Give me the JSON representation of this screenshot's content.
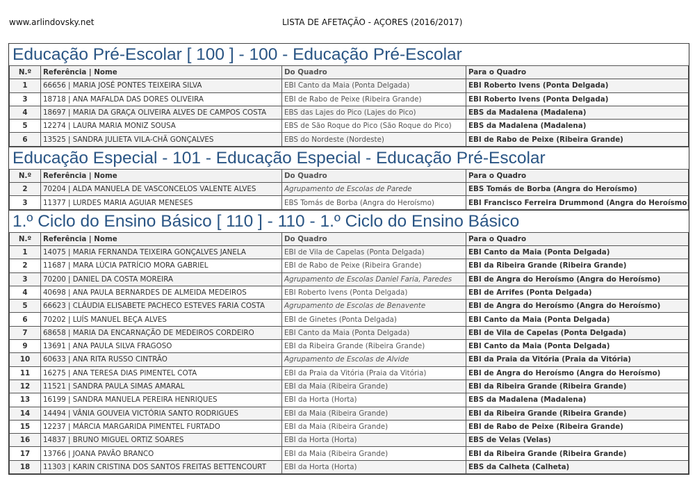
{
  "header": {
    "site": "www.arlindovsky.net",
    "title": "LISTA DE AFETAÇÃO - AÇORES (2016/2017)"
  },
  "columns": [
    "N.º",
    "Referência | Nome",
    "Do Quadro",
    "Para o Quadro"
  ],
  "sections": [
    {
      "title": "Educação Pré-Escolar [ 100 ] - 100 - Educação Pré-Escolar",
      "rows": [
        [
          "1",
          "66656 | MARIA JOSÉ PONTES TEIXEIRA SILVA",
          "EBI Canto da Maia (Ponta Delgada)",
          "EBI Roberto Ivens (Ponta Delgada)"
        ],
        [
          "3",
          "18718 | ANA MAFALDA DAS DORES OLIVEIRA",
          "EBI de Rabo de Peixe (Ribeira Grande)",
          "EBI Roberto Ivens (Ponta Delgada)"
        ],
        [
          "4",
          "18697 | MARIA DA GRAÇA OLIVEIRA ALVES DE CAMPOS COSTA",
          "EBS das Lajes do Pico (Lajes do Pico)",
          "EBS da Madalena (Madalena)"
        ],
        [
          "5",
          "12274 | LAURA MARIA MONIZ SOUSA",
          "EBS de São Roque do Pico (São Roque do Pico)",
          "EBS da Madalena (Madalena)"
        ],
        [
          "6",
          "13525 | SANDRA JULIETA VILA-CHÃ GONÇALVES",
          "EBS do Nordeste (Nordeste)",
          "EBI de Rabo de Peixe (Ribeira Grande)"
        ]
      ]
    },
    {
      "title": "Educação Especial - 101 - Educação Especial - Educação Pré-Escolar",
      "rows": [
        [
          "2",
          "70204 | ALDA MANUELA DE VASCONCELOS VALENTE ALVES",
          "Agrupamento de Escolas de Parede",
          "EBS Tomás de Borba (Angra do Heroísmo)"
        ],
        [
          "3",
          "11377 | LURDES MARIA AGUIAR MENESES",
          "EBS Tomás de Borba (Angra do Heroísmo)",
          "EBI Francisco Ferreira Drummond (Angra do Heroísmo)"
        ]
      ]
    },
    {
      "title": "1.º Ciclo do Ensino Básico [ 110 ] - 110 - 1.º Ciclo do Ensino Básico",
      "rows": [
        [
          "1",
          "14075 | MARIA FERNANDA TEIXEIRA GONÇALVES JANELA",
          "EBI de Vila de Capelas (Ponta Delgada)",
          "EBI Canto da Maia (Ponta Delgada)"
        ],
        [
          "2",
          "11687 | MARA LÚCIA PATRÍCIO MORA GABRIEL",
          "EBI de Rabo de Peixe (Ribeira Grande)",
          "EBI da Ribeira Grande (Ribeira Grande)"
        ],
        [
          "3",
          "70200 | DANIEL DA COSTA MOREIRA",
          "Agrupamento de Escolas Daniel Faria, Paredes",
          "EBI de Angra do Heroísmo (Angra do Heroísmo)"
        ],
        [
          "4",
          "40698 | ANA PAULA BERNARDES DE ALMEIDA MEDEIROS",
          "EBI Roberto Ivens (Ponta Delgada)",
          "EBI de Arrifes (Ponta Delgada)"
        ],
        [
          "5",
          "66623 | CLÁUDIA ELISABETE PACHECO ESTEVES FARIA COSTA",
          "Agrupamento de Escolas de Benavente",
          "EBI de Angra do Heroísmo (Angra do Heroísmo)"
        ],
        [
          "6",
          "70202 | LUÍS MANUEL BEÇA ALVES",
          "EBI de Ginetes (Ponta Delgada)",
          "EBI Canto da Maia (Ponta Delgada)"
        ],
        [
          "7",
          "68658 | MARIA DA ENCARNAÇÃO DE MEDEIROS CORDEIRO",
          "EBI Canto da Maia (Ponta Delgada)",
          "EBI de Vila de Capelas (Ponta Delgada)"
        ],
        [
          "9",
          "13691 | ANA PAULA SILVA FRAGOSO",
          "EBI da Ribeira Grande (Ribeira Grande)",
          "EBI Canto da Maia (Ponta Delgada)"
        ],
        [
          "10",
          "60633 | ANA RITA RUSSO CINTRÃO",
          "Agrupamento de Escolas de Alvide",
          "EBI da Praia da Vitória (Praia da Vitória)"
        ],
        [
          "11",
          "16275 | ANA TERESA DIAS PIMENTEL COTA",
          "EBI da Praia da Vitória (Praia da Vitória)",
          "EBI de Angra do Heroísmo (Angra do Heroísmo)"
        ],
        [
          "12",
          "11521 | SANDRA PAULA SIMAS AMARAL",
          "EBI da Maia (Ribeira Grande)",
          "EBI da Ribeira Grande (Ribeira Grande)"
        ],
        [
          "13",
          "16199 | SANDRA MANUELA PEREIRA HENRIQUES",
          "EBI da Horta (Horta)",
          "EBS da Madalena (Madalena)"
        ],
        [
          "14",
          "14494 | VÂNIA GOUVEIA VICTÓRIA SANTO RODRIGUES",
          "EBI da Maia (Ribeira Grande)",
          "EBI da Ribeira Grande (Ribeira Grande)"
        ],
        [
          "15",
          "12237 | MÁRCIA MARGARIDA PIMENTEL FURTADO",
          "EBI da Maia (Ribeira Grande)",
          "EBI de Rabo de Peixe (Ribeira Grande)"
        ],
        [
          "16",
          "14837 | BRUNO MIGUEL ORTIZ SOARES",
          "EBI da Horta (Horta)",
          "EBS de Velas (Velas)"
        ],
        [
          "17",
          "13766 | JOANA PAVÃO BRANCO",
          "EBI da Maia (Ribeira Grande)",
          "EBI da Ribeira Grande (Ribeira Grande)"
        ],
        [
          "18",
          "11303 | KARIN CRISTINA DOS SANTOS FREITAS BETTENCOURT",
          "EBI da Horta (Horta)",
          "EBS da Calheta (Calheta)"
        ]
      ]
    }
  ]
}
